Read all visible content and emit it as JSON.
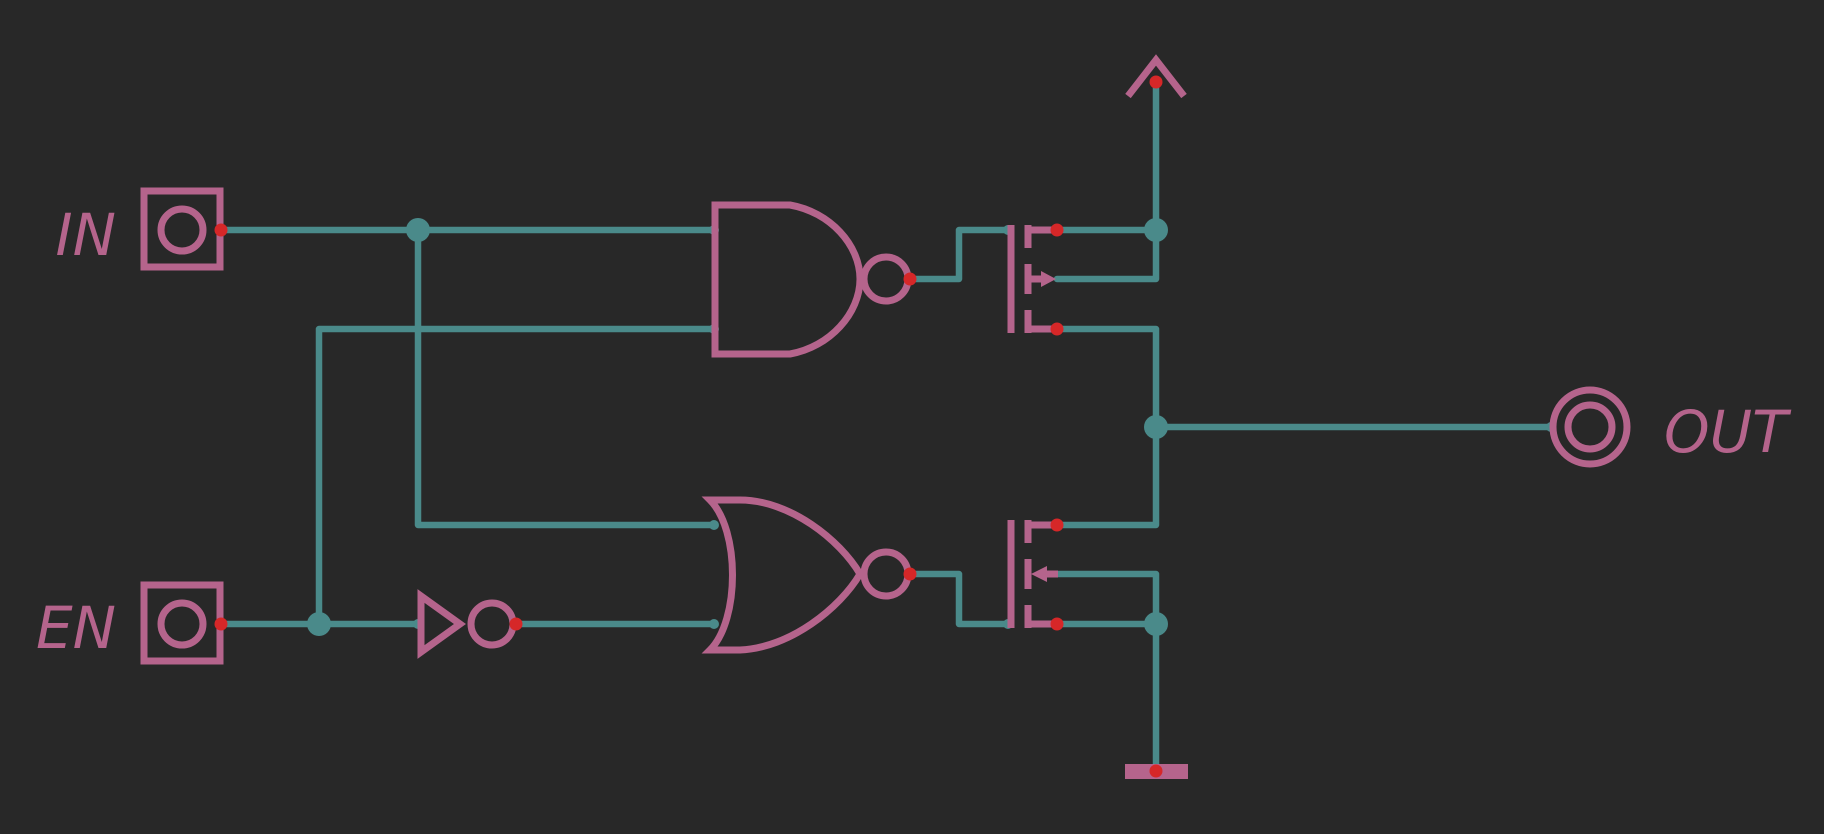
{
  "labels": {
    "in": "IN",
    "en": "EN",
    "out": "OUT"
  },
  "colors": {
    "background": "#282828",
    "wire": "#4a8a8a",
    "symbol": "#b5648c",
    "pin": "#d62728"
  }
}
